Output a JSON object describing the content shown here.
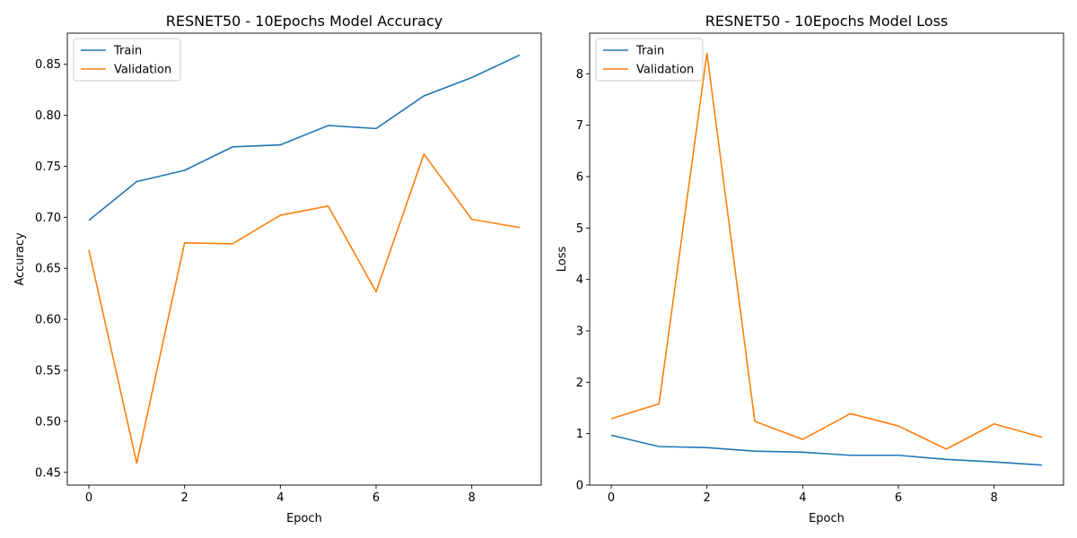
{
  "chart_data": [
    {
      "type": "line",
      "title": "RESNET50 - 10Epochs Model Accuracy",
      "xlabel": "Epoch",
      "ylabel": "Accuracy",
      "x": [
        0,
        1,
        2,
        3,
        4,
        5,
        6,
        7,
        8,
        9
      ],
      "xlim": [
        -0.45,
        9.45
      ],
      "ylim": [
        0.4375,
        0.8805
      ],
      "xticks": [
        0,
        2,
        4,
        6,
        8
      ],
      "yticks": [
        0.45,
        0.5,
        0.55,
        0.6,
        0.65,
        0.7,
        0.75,
        0.8,
        0.85
      ],
      "ytick_labels": [
        "0.45",
        "0.50",
        "0.55",
        "0.60",
        "0.65",
        "0.70",
        "0.75",
        "0.80",
        "0.85"
      ],
      "legend_position": "upper-left",
      "grid": false,
      "series": [
        {
          "name": "Train",
          "color": "#1f77b4",
          "values": [
            0.697,
            0.735,
            0.746,
            0.769,
            0.771,
            0.79,
            0.787,
            0.819,
            0.837,
            0.859
          ]
        },
        {
          "name": "Validation",
          "color": "#ff7f0e",
          "values": [
            0.668,
            0.459,
            0.675,
            0.674,
            0.702,
            0.711,
            0.627,
            0.762,
            0.698,
            0.69
          ]
        }
      ]
    },
    {
      "type": "line",
      "title": "RESNET50 - 10Epochs Model Loss",
      "xlabel": "Epoch",
      "ylabel": "Loss",
      "x": [
        0,
        1,
        2,
        3,
        4,
        5,
        6,
        7,
        8,
        9
      ],
      "xlim": [
        -0.45,
        9.45
      ],
      "ylim": [
        0,
        8.79
      ],
      "xticks": [
        0,
        2,
        4,
        6,
        8
      ],
      "yticks": [
        0,
        1,
        2,
        3,
        4,
        5,
        6,
        7,
        8
      ],
      "ytick_labels": [
        "0",
        "1",
        "2",
        "3",
        "4",
        "5",
        "6",
        "7",
        "8"
      ],
      "legend_position": "upper-left",
      "grid": false,
      "series": [
        {
          "name": "Train",
          "color": "#1f77b4",
          "values": [
            0.97,
            0.75,
            0.73,
            0.66,
            0.64,
            0.58,
            0.58,
            0.5,
            0.45,
            0.39
          ]
        },
        {
          "name": "Validation",
          "color": "#ff7f0e",
          "values": [
            1.29,
            1.58,
            8.4,
            1.24,
            0.89,
            1.39,
            1.15,
            0.7,
            1.19,
            0.93
          ]
        }
      ]
    }
  ]
}
